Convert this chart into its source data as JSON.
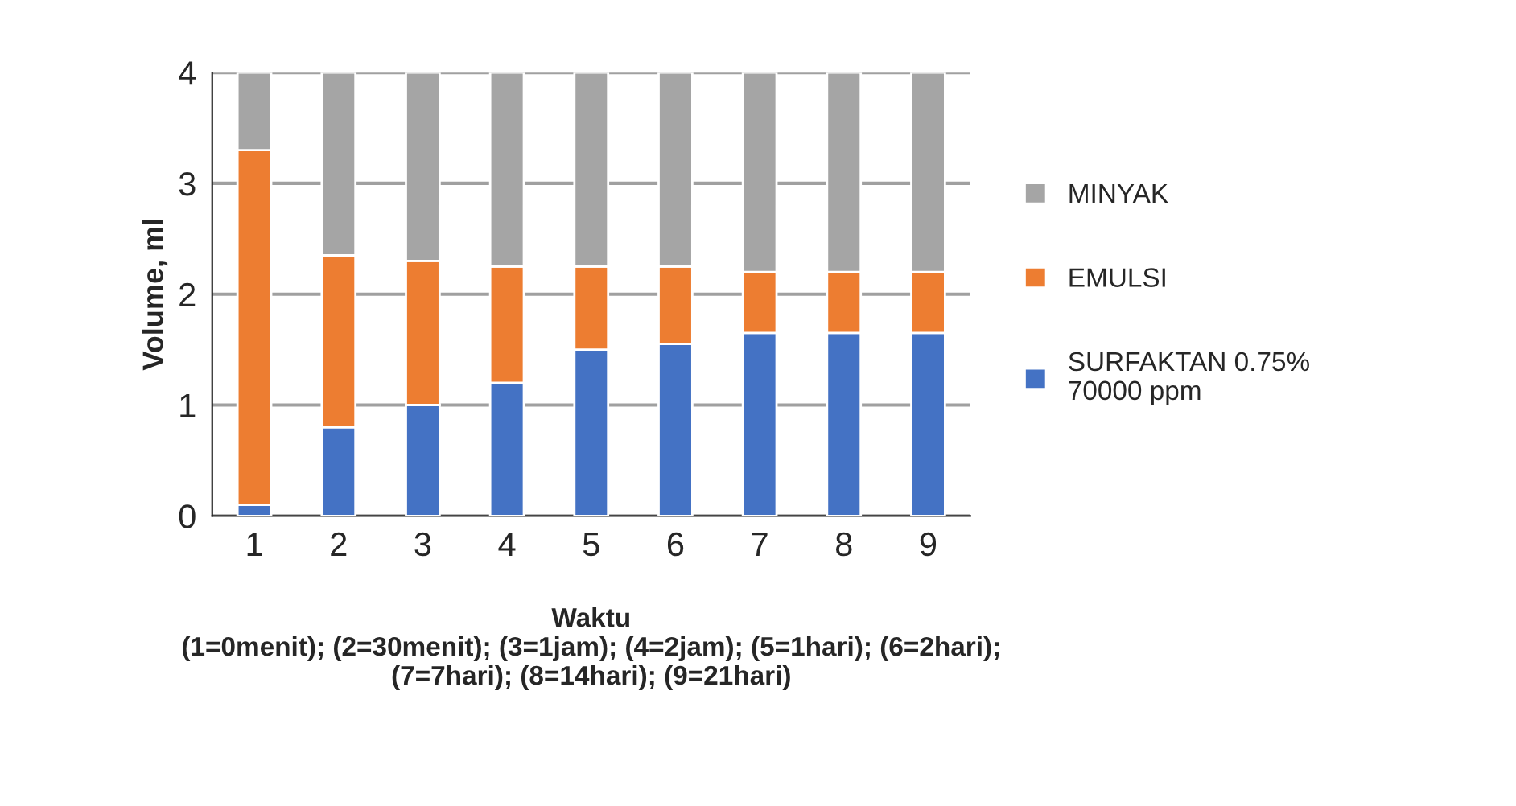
{
  "chart_data": {
    "type": "bar",
    "stacked": true,
    "categories": [
      "1",
      "2",
      "3",
      "4",
      "5",
      "6",
      "7",
      "8",
      "9"
    ],
    "series": [
      {
        "name": "SURFAKTAN 0.75%\n70000 ppm",
        "color": "#4472c4",
        "values": [
          0.1,
          0.8,
          1.0,
          1.2,
          1.5,
          1.55,
          1.65,
          1.65,
          1.65
        ]
      },
      {
        "name": "EMULSI",
        "color": "#ed7d31",
        "values": [
          3.2,
          1.55,
          1.3,
          1.05,
          0.75,
          0.7,
          0.55,
          0.55,
          0.55
        ]
      },
      {
        "name": "MINYAK",
        "color": "#a5a5a5",
        "values": [
          0.7,
          1.65,
          1.7,
          1.75,
          1.75,
          1.75,
          1.8,
          1.8,
          1.8
        ]
      }
    ],
    "xlabel": "Waktu\n(1=0menit); (2=30menit); (3=1jam); (4=2jam); (5=1hari); (6=2hari);\n(7=7hari); (8=14hari); (9=21hari)",
    "ylabel": "Volume, ml",
    "ylim": [
      0,
      4
    ],
    "yticks": [
      0,
      1,
      2,
      3,
      4
    ],
    "grid": "y",
    "legend": "right"
  }
}
